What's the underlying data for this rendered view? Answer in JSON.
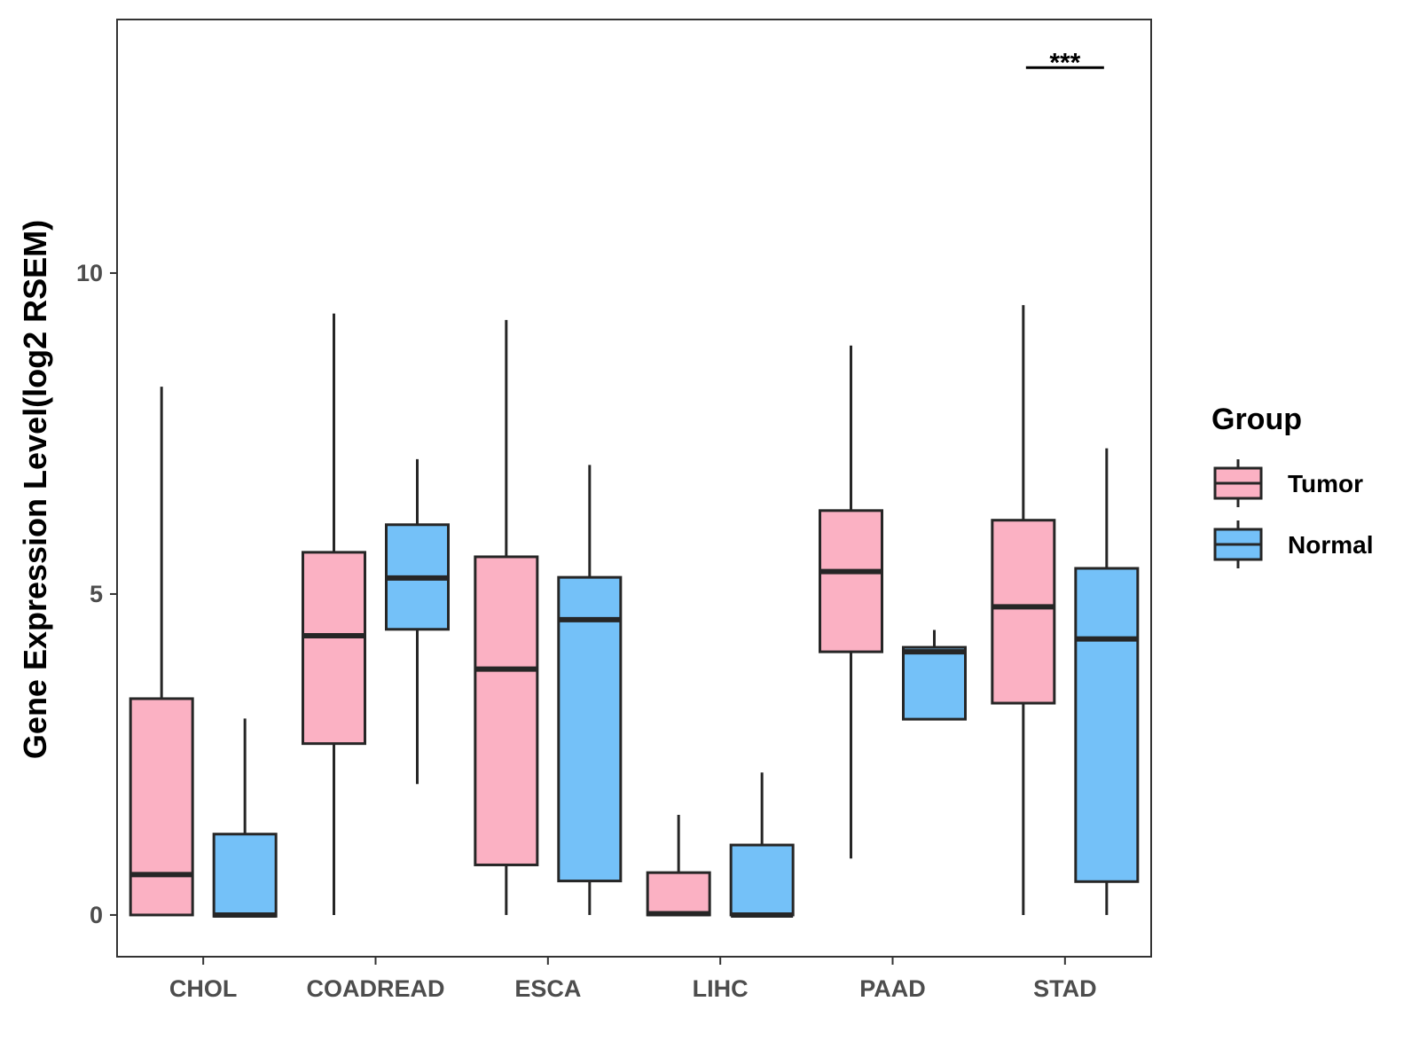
{
  "chart_data": {
    "type": "boxplot",
    "title": "",
    "xlabel": "",
    "ylabel": "Gene Expression Level(log2 RSEM)",
    "ylim": [
      -0.65,
      13.95
    ],
    "yticks": [
      0,
      5,
      10
    ],
    "categories": [
      "CHOL",
      "COADREAD",
      "ESCA",
      "LIHC",
      "PAAD",
      "STAD"
    ],
    "legend": {
      "title": "Group",
      "position": "right",
      "entries": [
        {
          "name": "Tumor",
          "color": "#FBB1C3"
        },
        {
          "name": "Normal",
          "color": "#74C1F8"
        }
      ]
    },
    "series": [
      {
        "name": "Tumor",
        "color": "#FBB1C3",
        "boxes": [
          {
            "min": 0.0,
            "q1": 0.0,
            "median": 0.63,
            "q3": 3.37,
            "max": 8.23
          },
          {
            "min": 0.0,
            "q1": 2.67,
            "median": 4.35,
            "q3": 5.65,
            "max": 9.37
          },
          {
            "min": 0.0,
            "q1": 0.78,
            "median": 3.83,
            "q3": 5.58,
            "max": 9.27
          },
          {
            "min": 0.0,
            "q1": 0.0,
            "median": 0.02,
            "q3": 0.66,
            "max": 1.56
          },
          {
            "min": 0.88,
            "q1": 4.1,
            "median": 5.35,
            "q3": 6.3,
            "max": 8.87
          },
          {
            "min": 0.0,
            "q1": 3.3,
            "median": 4.8,
            "q3": 6.15,
            "max": 9.5
          }
        ]
      },
      {
        "name": "Normal",
        "color": "#74C1F8",
        "boxes": [
          {
            "min": -0.02,
            "q1": -0.02,
            "median": 0.0,
            "q3": 1.26,
            "max": 3.06
          },
          {
            "min": 2.04,
            "q1": 4.45,
            "median": 5.25,
            "q3": 6.08,
            "max": 7.1
          },
          {
            "min": 0.0,
            "q1": 0.53,
            "median": 4.6,
            "q3": 5.26,
            "max": 7.01
          },
          {
            "min": 0.0,
            "q1": 0.0,
            "median": 0.0,
            "q3": 1.09,
            "max": 2.22
          },
          {
            "min": 3.05,
            "q1": 3.05,
            "median": 4.1,
            "q3": 4.17,
            "max": 4.44
          },
          {
            "min": 0.0,
            "q1": 0.52,
            "median": 4.3,
            "q3": 5.4,
            "max": 7.27
          }
        ]
      }
    ],
    "annotations": [
      {
        "category": "STAD",
        "text": "***",
        "y": 13.2
      }
    ]
  }
}
